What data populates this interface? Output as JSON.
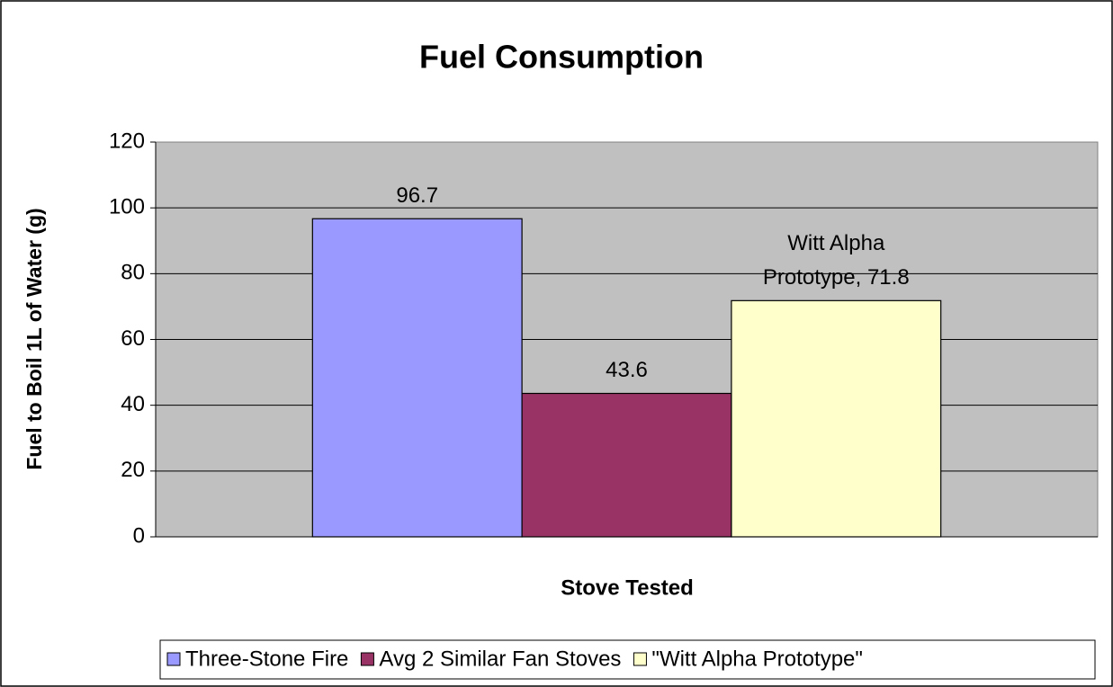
{
  "chart_data": {
    "type": "bar",
    "title": "Fuel Consumption",
    "x_label": "Stove Tested",
    "y_label": "Fuel to Boil 1L of Water (g)",
    "categories": [
      null
    ],
    "series": [
      {
        "name": "Three-Stone Fire",
        "color": "#9999ff",
        "values": [
          96.7
        ]
      },
      {
        "name": "Avg 2 Similar Fan Stoves",
        "color": "#993366",
        "values": [
          43.6
        ]
      },
      {
        "name": "\"Witt Alpha Prototype\"",
        "color": "#ffffcc",
        "values": [
          71.8
        ],
        "value_labels": [
          "Witt Alpha Prototype, 71.8"
        ]
      }
    ],
    "ylim": [
      0,
      120
    ],
    "yticks": [
      0,
      20,
      40,
      60,
      80,
      100,
      120
    ],
    "grid": true,
    "legend": "bottom"
  }
}
